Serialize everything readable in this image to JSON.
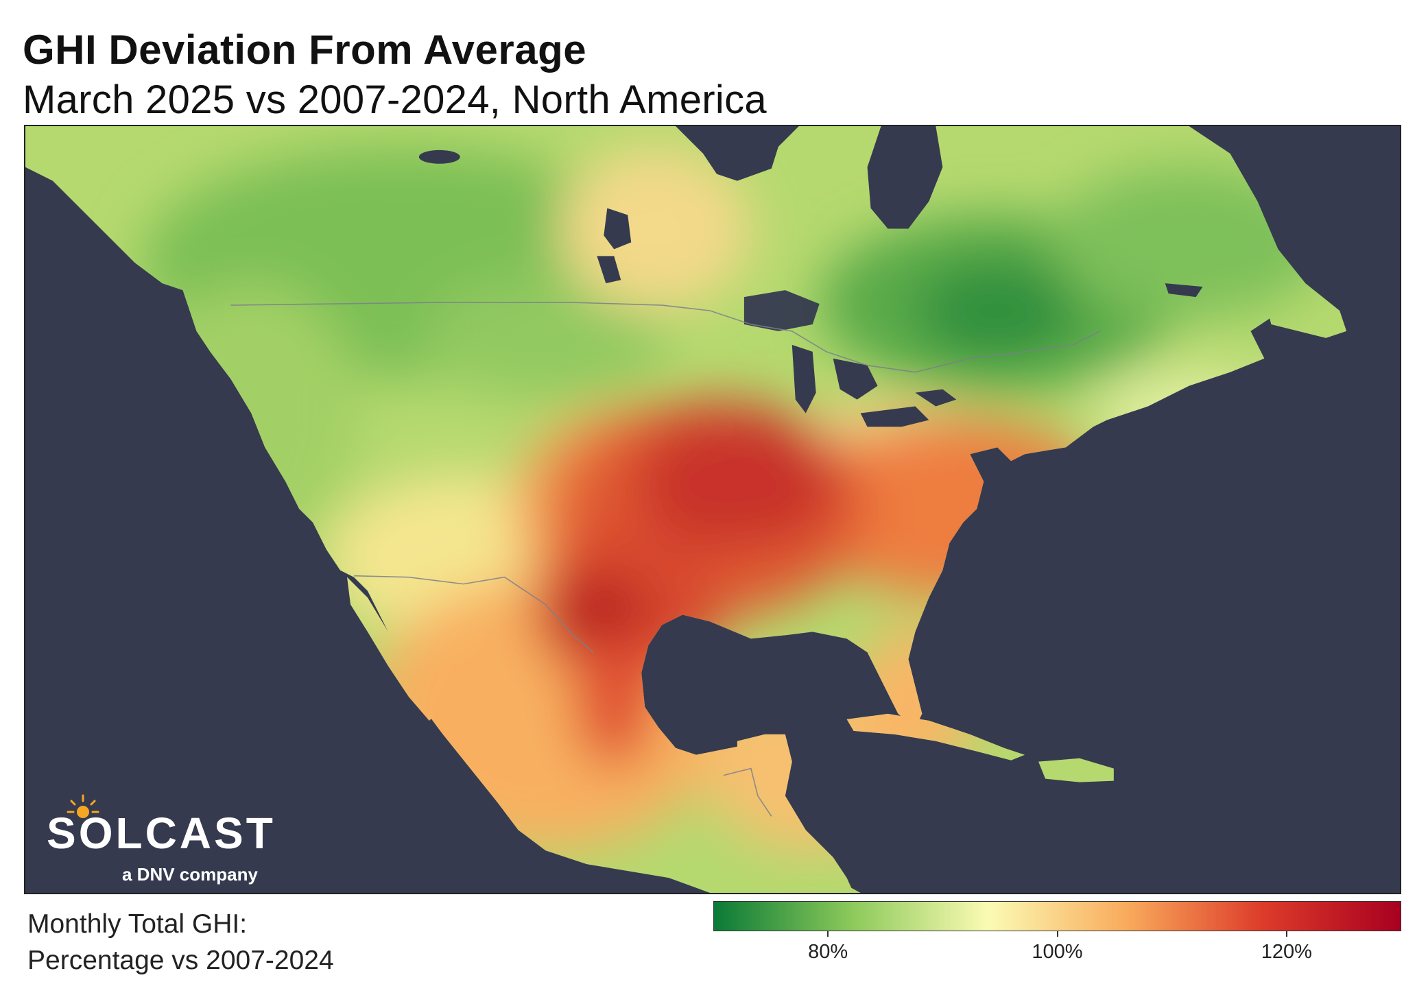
{
  "title": "GHI Deviation From Average",
  "subtitle": "March 2025 vs 2007-2024, North America",
  "legend": {
    "label_line1": "Monthly Total GHI:",
    "label_line2": "Percentage vs 2007-2024",
    "ticks": [
      "80%",
      "100%",
      "120%"
    ],
    "tick_values": [
      80,
      100,
      120
    ],
    "range": [
      70,
      130
    ],
    "colors": [
      "#0a7a37",
      "#8cc95a",
      "#fbfbb4",
      "#f9ab5c",
      "#dd3b2a",
      "#a80020"
    ]
  },
  "logo": {
    "wordmark": "SOLCAST",
    "tagline": "a DNV company"
  },
  "map": {
    "ocean_color": "#353a4f",
    "region": "North America",
    "lakes_color": "#353a4f"
  }
}
